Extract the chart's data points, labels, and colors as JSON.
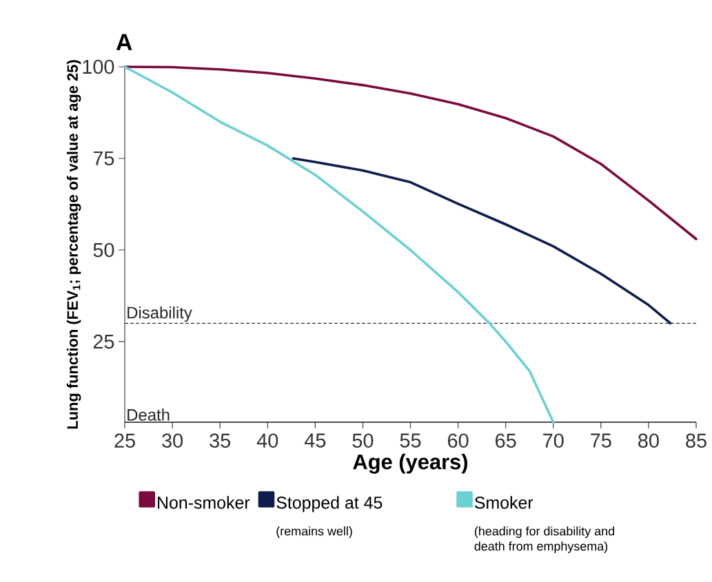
{
  "chart_data": {
    "type": "line",
    "title": "A",
    "xlabel": "Age (years)",
    "ylabel": "Lung function (FEV$_{1}$; percentage of value at age 25)",
    "series": [
      {
        "name": "Non-smoker",
        "color": "#7b0b3f",
        "x": [
          25,
          30,
          35,
          40,
          45,
          50,
          55,
          60,
          65,
          70,
          75,
          80,
          85
        ],
        "values": [
          100,
          99.9,
          99.3,
          98.3,
          96.8,
          95,
          92.7,
          89.8,
          86,
          81,
          73.5,
          63.5,
          53
        ]
      },
      {
        "name": "Stopped at 45",
        "color": "#0f1d4d",
        "x": [
          42.7,
          45,
          50,
          55,
          60,
          65,
          70,
          75,
          80,
          82.3
        ],
        "values": [
          75,
          74,
          71.7,
          68.5,
          62.6,
          57,
          51,
          43.5,
          35,
          30
        ]
      },
      {
        "name": "Smoker",
        "color": "#6dd0d2",
        "x": [
          25,
          30,
          35,
          40,
          42.5,
          45,
          50,
          55,
          60,
          63.3,
          65,
          67.5,
          70
        ],
        "values": [
          100,
          93,
          85,
          78.5,
          74.5,
          70.5,
          60.5,
          50,
          38.5,
          30,
          25,
          17,
          3
        ]
      }
    ],
    "xlim": [
      25,
      85
    ],
    "ylim": [
      3,
      100
    ],
    "xticks": [
      25,
      30,
      35,
      40,
      45,
      50,
      55,
      60,
      65,
      70,
      75,
      80,
      85
    ],
    "yticks": [
      25,
      50,
      75,
      100
    ],
    "ref_lines": [
      {
        "axis": "y",
        "value": 30,
        "label": "Disability",
        "line_style": "dashed",
        "color": "#000000"
      },
      {
        "axis": "y",
        "value": 3,
        "label": "Death",
        "line_style": "solid",
        "color": "#000000"
      }
    ],
    "annotations": [
      "(remains well)",
      "(heading for disability and death from emphysema)"
    ],
    "legend": "bottom",
    "grid": false,
    "line_style": "solid"
  }
}
